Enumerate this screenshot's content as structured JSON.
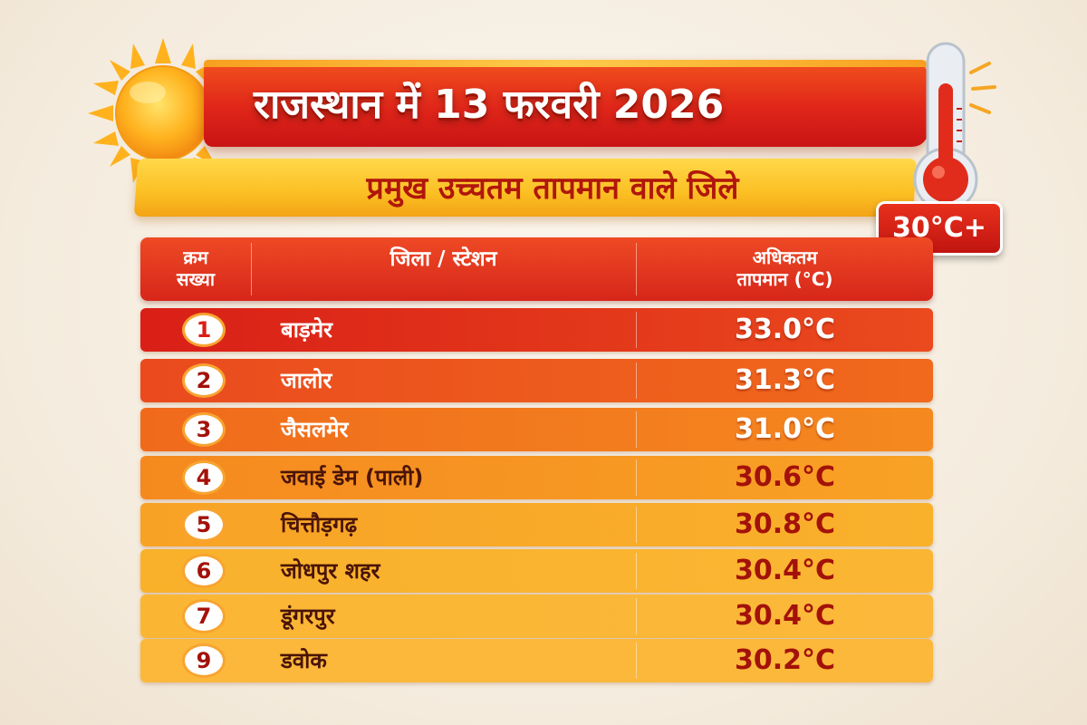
{
  "title": "राजस्थान में 13 फरवरी 2026",
  "subtitle": "प्रमुख उच्चतम तापमान वाले जिले",
  "badge": "30°C+",
  "table": {
    "headers": {
      "serial_line1": "क्रम",
      "serial_line2": "सख्या",
      "district": "जिला / स्टेशन",
      "temp_line1": "अधिकतम",
      "temp_line2": "तापमान (°C)"
    },
    "rows": [
      {
        "rank": "1",
        "district": "बाड़मेर",
        "temp": "33.0°C"
      },
      {
        "rank": "2",
        "district": "जालोर",
        "temp": "31.3°C"
      },
      {
        "rank": "3",
        "district": "जैसलमेर",
        "temp": "31.0°C"
      },
      {
        "rank": "4",
        "district": "जवाई डेम (पाली)",
        "temp": "30.6°C"
      },
      {
        "rank": "5",
        "district": "चित्तौड़गढ़",
        "temp": "30.8°C"
      },
      {
        "rank": "6",
        "district": "जोधपुर शहर",
        "temp": "30.4°C"
      },
      {
        "rank": "7",
        "district": "डूंगरपुर",
        "temp": "30.4°C"
      },
      {
        "rank": "9",
        "district": "डवोक",
        "temp": "30.2°C"
      }
    ]
  },
  "colors": {
    "title_red": "#e0261a",
    "subtitle_yellow": "#fbbf23",
    "dark_red_text": "#a3120a",
    "row_gradient": [
      "#d91f17",
      "#ea4a1e",
      "#f06a1c",
      "#f5891f",
      "#f8a225",
      "#f9b12c",
      "#fab633",
      "#fbb83a"
    ]
  },
  "icons": [
    "sun-icon",
    "thermometer-icon"
  ]
}
